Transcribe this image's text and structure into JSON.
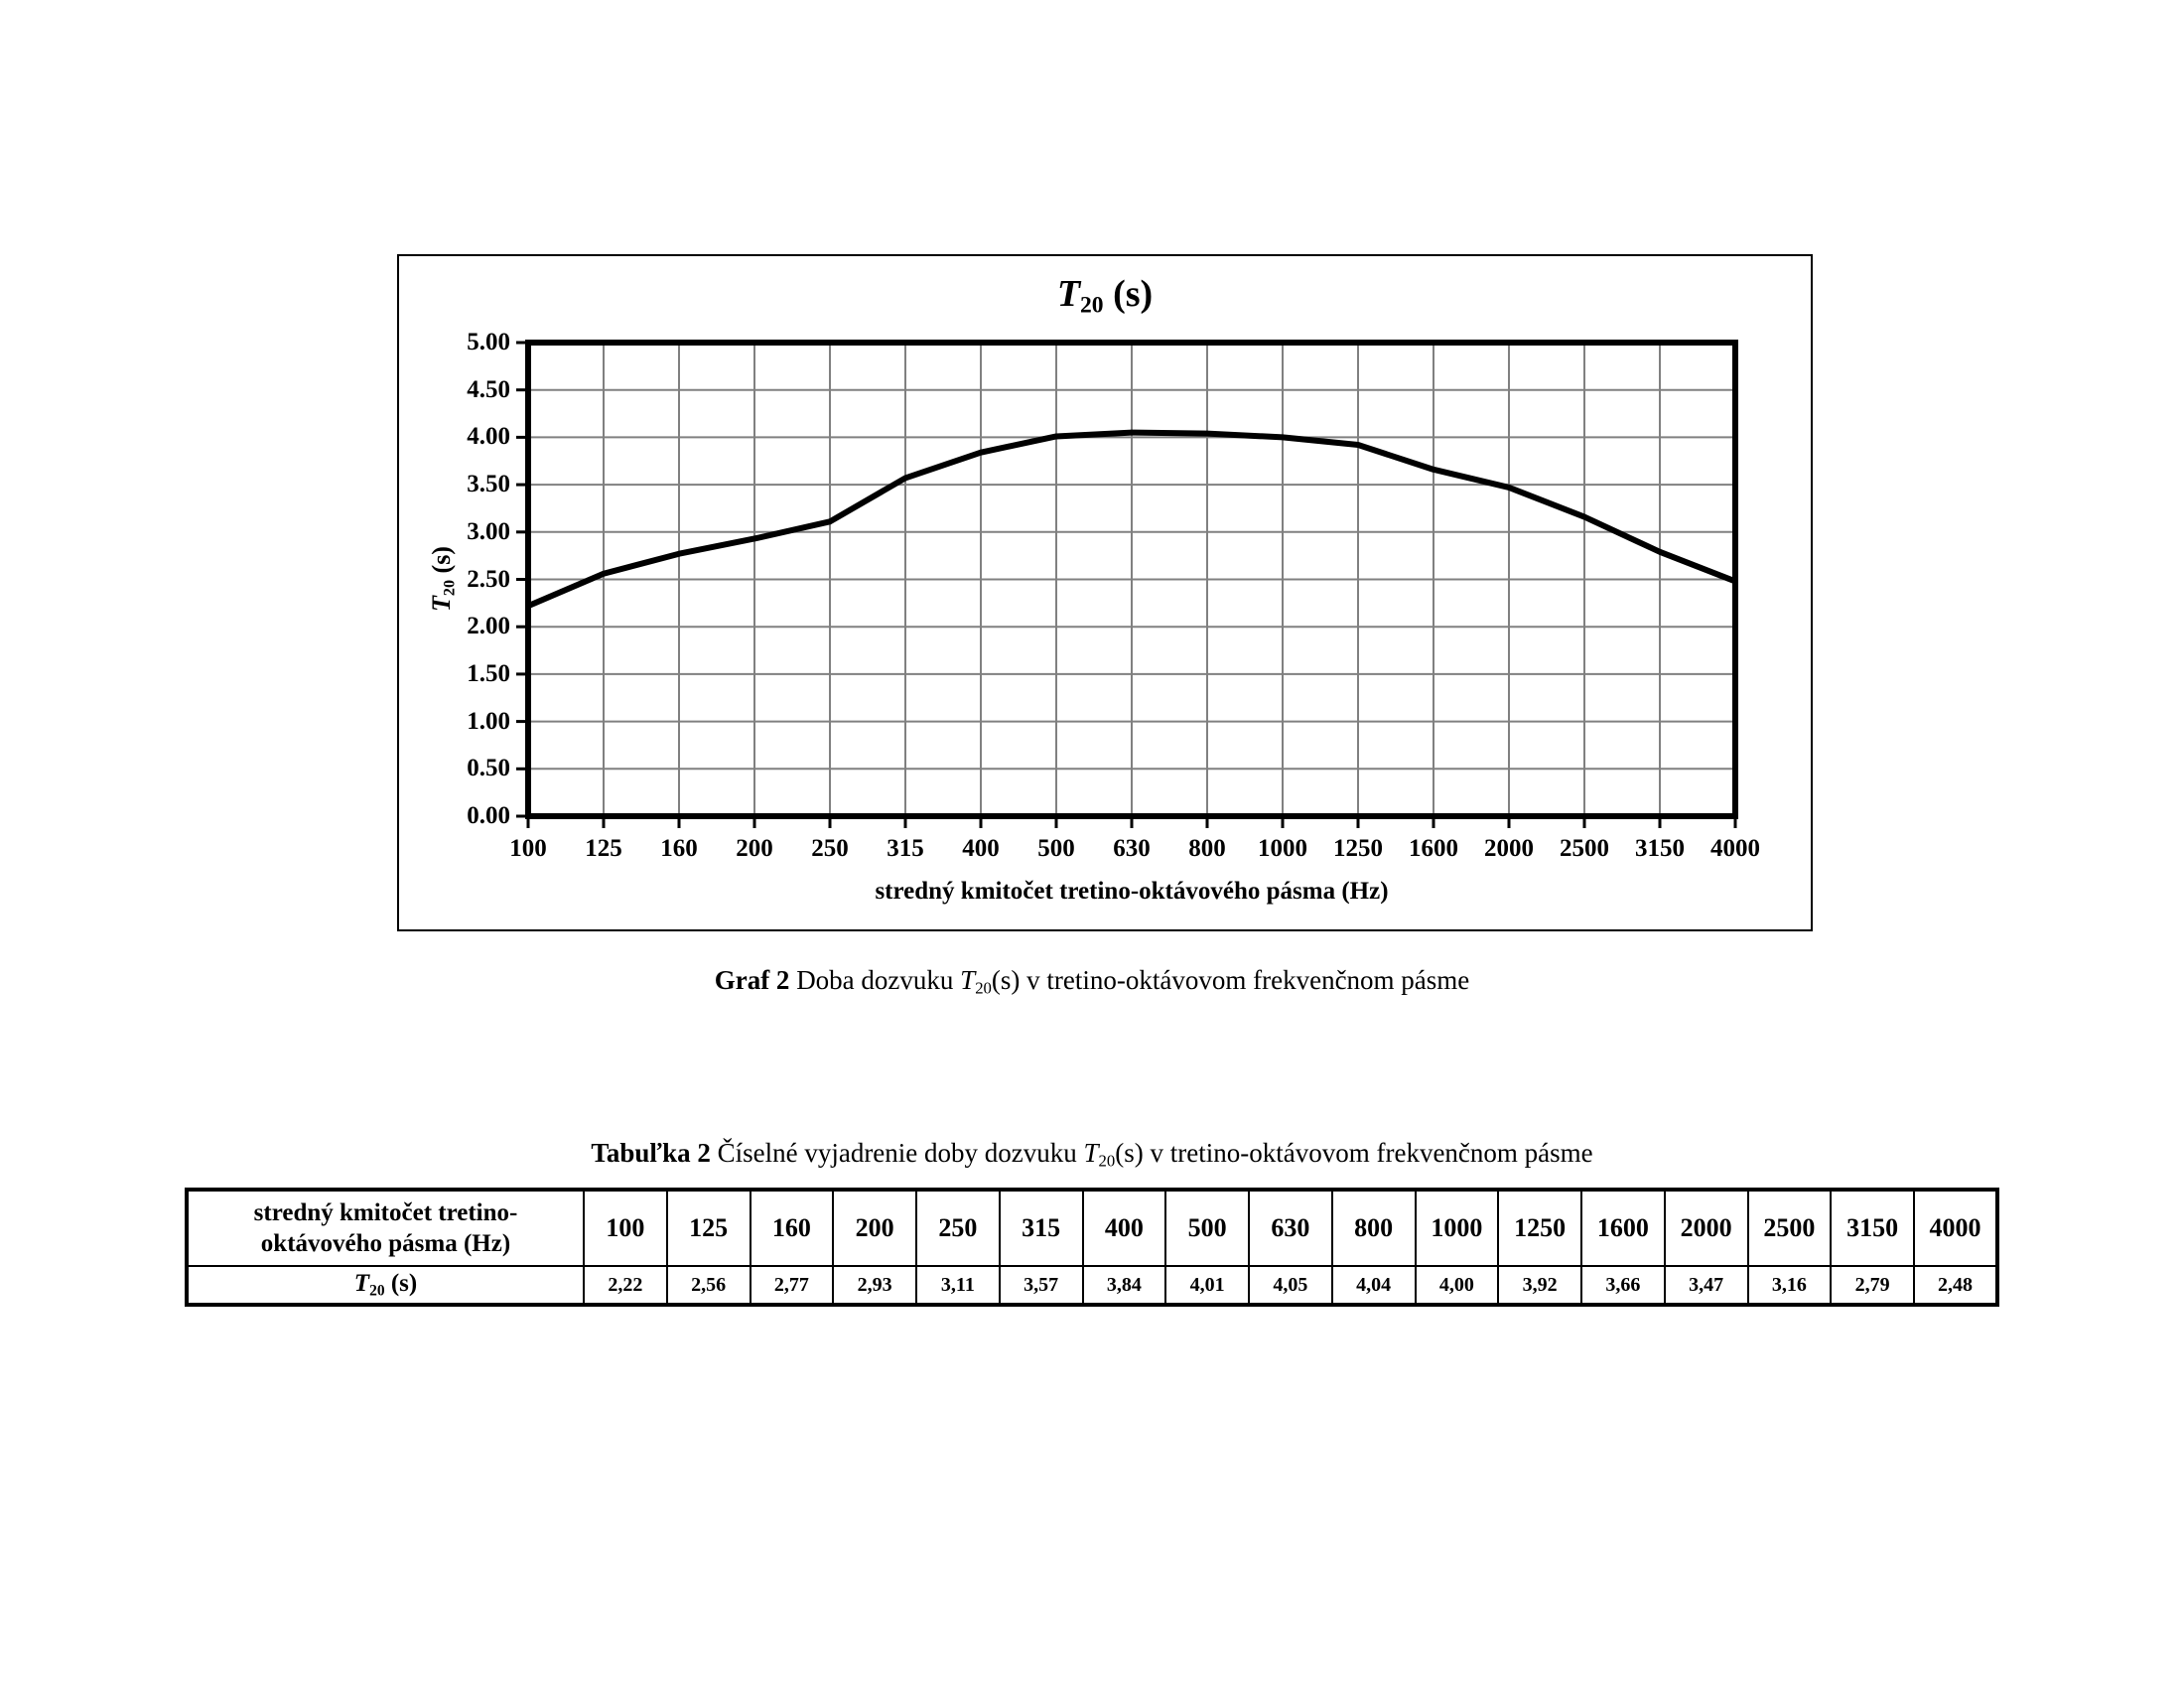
{
  "chart": {
    "title": {
      "t": "T",
      "sub": "20",
      "unit": " (s)"
    },
    "y_axis_label": {
      "t": "T",
      "sub": "20",
      "unit": " (s)"
    },
    "x_axis_title": "stredný kmitočet tretino-oktávového pásma (Hz)"
  },
  "chart_data": {
    "type": "line",
    "title": "T20 (s)",
    "categories": [
      "100",
      "125",
      "160",
      "200",
      "250",
      "315",
      "400",
      "500",
      "630",
      "800",
      "1000",
      "1250",
      "1600",
      "2000",
      "2500",
      "3150",
      "4000"
    ],
    "values": [
      2.22,
      2.56,
      2.77,
      2.93,
      3.11,
      3.57,
      3.84,
      4.01,
      4.05,
      4.04,
      4.0,
      3.92,
      3.66,
      3.47,
      3.16,
      2.79,
      2.48
    ],
    "xlabel": "stredný kmitočet tretino-oktávového pásma (Hz)",
    "ylabel": "T20 (s)",
    "ylim": [
      0,
      5
    ],
    "ytick_step": 0.5,
    "ytick_labels": [
      "0.00",
      "0.50",
      "1.00",
      "1.50",
      "2.00",
      "2.50",
      "3.00",
      "3.50",
      "4.00",
      "4.50",
      "5.00"
    ],
    "grid": true,
    "legend": false,
    "line_color": "#000000",
    "grid_color": "#808080",
    "frame_color": "#000000"
  },
  "caption": {
    "label": "Graf 2",
    "pre": "  Doba dozvuku ",
    "t": "T",
    "sub": "20",
    "post": "(s) v tretino-oktávovom frekvenčnom pásme"
  },
  "table_title": {
    "label": "Tabuľka 2",
    "pre": " Číselné vyjadrenie doby dozvuku ",
    "t": "T",
    "sub": "20",
    "post": "(s) v tretino-oktávovom frekvenčnom pásme"
  },
  "table": {
    "header_label_line1": "stredný kmitočet tretino-",
    "header_label_line2": "oktávového pásma (Hz)",
    "row_label": {
      "t": "T",
      "sub": "20",
      "unit": " (s)"
    },
    "columns": [
      "100",
      "125",
      "160",
      "200",
      "250",
      "315",
      "400",
      "500",
      "630",
      "800",
      "1000",
      "1250",
      "1600",
      "2000",
      "2500",
      "3150",
      "4000"
    ],
    "values": [
      "2,22",
      "2,56",
      "2,77",
      "2,93",
      "3,11",
      "3,57",
      "3,84",
      "4,01",
      "4,05",
      "4,04",
      "4,00",
      "3,92",
      "3,66",
      "3,47",
      "3,16",
      "2,79",
      "2,48"
    ]
  }
}
